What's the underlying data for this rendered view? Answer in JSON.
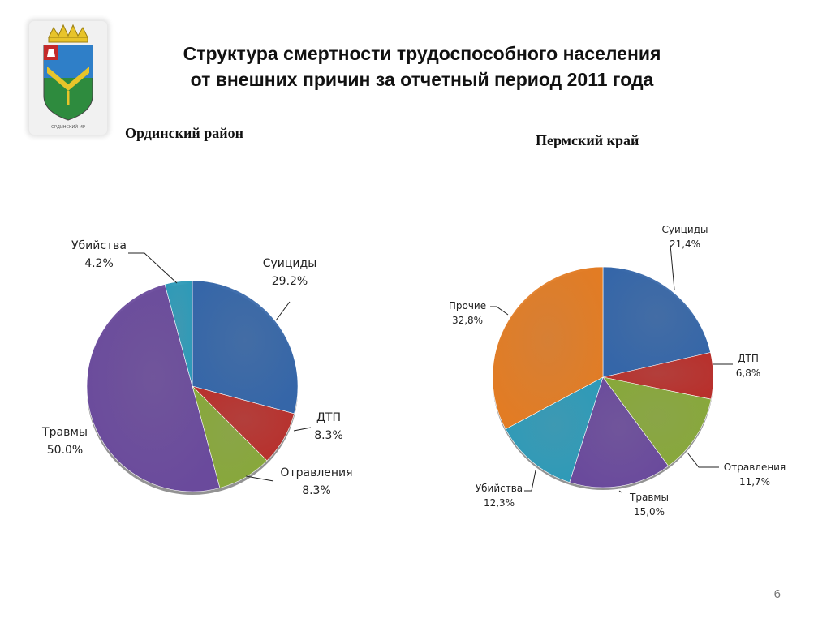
{
  "title_line1": "Структура смертности трудоспособного населения",
  "title_line2": "от внешних причин за отчетный период 2011 года",
  "emblem_caption": "ОРДИНСКИЙ МР",
  "page_number": "6",
  "chart_data": [
    {
      "type": "pie",
      "title": "Ординский район",
      "start": "top, clockwise",
      "slices": [
        {
          "label": "Суициды",
          "value": 29.2,
          "display": "29.2%",
          "color": "#3566A8"
        },
        {
          "label": "ДТП",
          "value": 8.3,
          "display": "8.3%",
          "color": "#B8302C"
        },
        {
          "label": "Отравления",
          "value": 8.3,
          "display": "8.3%",
          "color": "#88A83A"
        },
        {
          "label": "Травмы",
          "value": 50.0,
          "display": "50.0%",
          "color": "#6A4A9C"
        },
        {
          "label": "Убийства",
          "value": 4.2,
          "display": "4.2%",
          "color": "#2E9AB8"
        }
      ]
    },
    {
      "type": "pie",
      "title": "Пермский край",
      "start": "top, clockwise",
      "slices": [
        {
          "label": "Суициды",
          "value": 21.4,
          "display": "21,4%",
          "color": "#3566A8"
        },
        {
          "label": "ДТП",
          "value": 6.8,
          "display": "6,8%",
          "color": "#B8302C"
        },
        {
          "label": "Отравления",
          "value": 11.7,
          "display": "11,7%",
          "color": "#88A83A"
        },
        {
          "label": "Травмы",
          "value": 15.0,
          "display": "15,0%",
          "color": "#6A4A9C"
        },
        {
          "label": "Убийства",
          "value": 12.3,
          "display": "12,3%",
          "color": "#2E9AB8"
        },
        {
          "label": "Прочие",
          "value": 32.8,
          "display": "32,8%",
          "color": "#E27C24"
        }
      ]
    }
  ]
}
